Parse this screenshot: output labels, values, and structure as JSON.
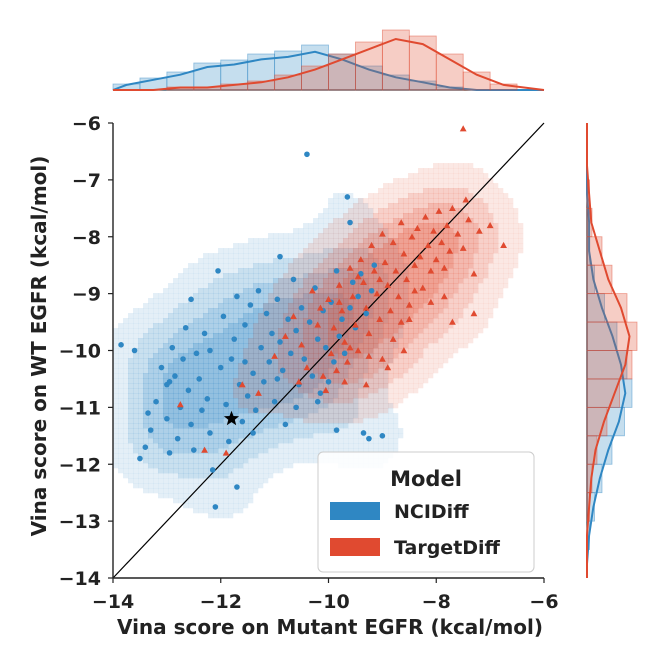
{
  "chart_data": {
    "type": "scatter",
    "title": "",
    "xlabel": "Vina score on Mutant EGFR (kcal/mol)",
    "ylabel": "Vina score on WT EGFR (kcal/mol)",
    "xlim": [
      -14,
      -6
    ],
    "ylim": [
      -14,
      -6
    ],
    "xticks": [
      -14,
      -12,
      -10,
      -8,
      -6
    ],
    "yticks": [
      -14,
      -13,
      -12,
      -11,
      -10,
      -9,
      -8,
      -7,
      -6
    ],
    "xtick_labels": [
      "−14",
      "−12",
      "−10",
      "−8",
      "−6"
    ],
    "ytick_labels": [
      "−14",
      "−13",
      "−12",
      "−11",
      "−10",
      "−9",
      "−8",
      "−7",
      "−6"
    ],
    "grid": false,
    "diagonal_line": {
      "from": [
        -14,
        -14
      ],
      "to": [
        -6,
        -6
      ]
    },
    "legend": {
      "title": "Model",
      "placement": "bottom-right",
      "entries": [
        "NCIDiff",
        "TargetDiff"
      ]
    },
    "colors": {
      "NCIDiff": "#2f87c3",
      "TargetDiff": "#e04a30"
    },
    "reference_marker": {
      "label": "reference",
      "x": -11.8,
      "y": -11.2,
      "marker": "star"
    },
    "series": [
      {
        "name": "NCIDiff",
        "marker": "circle",
        "points": [
          [
            -13.85,
            -9.9
          ],
          [
            -13.6,
            -10.0
          ],
          [
            -13.5,
            -11.9
          ],
          [
            -13.4,
            -11.7
          ],
          [
            -13.35,
            -11.1
          ],
          [
            -13.3,
            -11.4
          ],
          [
            -13.2,
            -10.9
          ],
          [
            -13.1,
            -10.3
          ],
          [
            -13.0,
            -11.2
          ],
          [
            -13.0,
            -10.6
          ],
          [
            -12.95,
            -11.8
          ],
          [
            -12.9,
            -9.95
          ],
          [
            -12.85,
            -10.45
          ],
          [
            -12.8,
            -11.55
          ],
          [
            -12.75,
            -11.0
          ],
          [
            -12.7,
            -10.15
          ],
          [
            -12.65,
            -9.6
          ],
          [
            -12.6,
            -10.7
          ],
          [
            -12.55,
            -11.3
          ],
          [
            -12.5,
            -11.75
          ],
          [
            -12.45,
            -10.05
          ],
          [
            -12.4,
            -10.5
          ],
          [
            -12.35,
            -11.05
          ],
          [
            -12.3,
            -9.7
          ],
          [
            -12.25,
            -10.85
          ],
          [
            -12.2,
            -11.45
          ],
          [
            -12.15,
            -12.1
          ],
          [
            -12.1,
            -12.75
          ],
          [
            -12.05,
            -8.6
          ],
          [
            -12.0,
            -10.3
          ],
          [
            -11.95,
            -9.4
          ],
          [
            -11.9,
            -10.95
          ],
          [
            -11.85,
            -11.6
          ],
          [
            -11.8,
            -10.15
          ],
          [
            -11.75,
            -9.8
          ],
          [
            -11.7,
            -9.05
          ],
          [
            -11.65,
            -10.6
          ],
          [
            -11.6,
            -11.25
          ],
          [
            -11.55,
            -9.55
          ],
          [
            -11.5,
            -10.8
          ],
          [
            -11.45,
            -9.2
          ],
          [
            -11.4,
            -10.4
          ],
          [
            -11.35,
            -11.05
          ],
          [
            -11.3,
            -8.95
          ],
          [
            -11.25,
            -9.95
          ],
          [
            -11.2,
            -10.55
          ],
          [
            -11.15,
            -9.35
          ],
          [
            -11.1,
            -10.2
          ],
          [
            -11.05,
            -9.7
          ],
          [
            -11.0,
            -10.9
          ],
          [
            -10.95,
            -9.1
          ],
          [
            -10.9,
            -9.85
          ],
          [
            -10.85,
            -10.35
          ],
          [
            -10.8,
            -11.3
          ],
          [
            -10.75,
            -9.45
          ],
          [
            -10.7,
            -10.05
          ],
          [
            -10.65,
            -8.75
          ],
          [
            -10.6,
            -9.65
          ],
          [
            -10.55,
            -10.6
          ],
          [
            -10.5,
            -9.25
          ],
          [
            -10.45,
            -10.15
          ],
          [
            -10.4,
            -6.55
          ],
          [
            -10.35,
            -9.5
          ],
          [
            -10.3,
            -10.45
          ],
          [
            -10.25,
            -8.9
          ],
          [
            -10.2,
            -9.8
          ],
          [
            -10.15,
            -10.75
          ],
          [
            -10.1,
            -9.3
          ],
          [
            -10.05,
            -9.95
          ],
          [
            -10.0,
            -10.55
          ],
          [
            -9.95,
            -9.15
          ],
          [
            -9.9,
            -10.2
          ],
          [
            -9.85,
            -8.6
          ],
          [
            -9.8,
            -9.75
          ],
          [
            -9.75,
            -9.45
          ],
          [
            -9.7,
            -10.05
          ],
          [
            -9.65,
            -7.3
          ],
          [
            -9.6,
            -9.25
          ],
          [
            -9.55,
            -8.8
          ],
          [
            -9.5,
            -9.6
          ],
          [
            -9.45,
            -9.05
          ],
          [
            -9.4,
            -8.65
          ],
          [
            -9.35,
            -11.45
          ],
          [
            -9.3,
            -9.35
          ],
          [
            -9.25,
            -11.55
          ],
          [
            -9.2,
            -8.95
          ],
          [
            -9.15,
            -8.5
          ],
          [
            -9.0,
            -11.5
          ],
          [
            -11.7,
            -12.4
          ],
          [
            -10.9,
            -8.35
          ],
          [
            -12.95,
            -10.55
          ],
          [
            -12.55,
            -9.1
          ],
          [
            -11.4,
            -11.45
          ],
          [
            -10.6,
            -11.0
          ],
          [
            -9.85,
            -11.4
          ],
          [
            -9.6,
            -7.75
          ],
          [
            -12.2,
            -10.0
          ],
          [
            -11.55,
            -10.2
          ],
          [
            -10.95,
            -10.5
          ],
          [
            -10.2,
            -10.9
          ]
        ]
      },
      {
        "name": "TargetDiff",
        "marker": "triangle",
        "points": [
          [
            -12.75,
            -10.95
          ],
          [
            -12.3,
            -11.75
          ],
          [
            -11.9,
            -11.8
          ],
          [
            -11.6,
            -10.6
          ],
          [
            -11.3,
            -10.75
          ],
          [
            -11.0,
            -10.1
          ],
          [
            -10.8,
            -9.75
          ],
          [
            -10.65,
            -9.4
          ],
          [
            -10.5,
            -9.9
          ],
          [
            -10.4,
            -10.3
          ],
          [
            -10.3,
            -8.95
          ],
          [
            -10.2,
            -9.55
          ],
          [
            -10.1,
            -10.45
          ],
          [
            -10.0,
            -9.1
          ],
          [
            -9.95,
            -10.05
          ],
          [
            -9.9,
            -9.6
          ],
          [
            -9.85,
            -10.35
          ],
          [
            -9.8,
            -8.85
          ],
          [
            -9.75,
            -9.3
          ],
          [
            -9.7,
            -9.85
          ],
          [
            -9.65,
            -10.2
          ],
          [
            -9.6,
            -8.55
          ],
          [
            -9.55,
            -9.05
          ],
          [
            -9.5,
            -9.55
          ],
          [
            -9.45,
            -10.0
          ],
          [
            -9.4,
            -8.4
          ],
          [
            -9.35,
            -8.8
          ],
          [
            -9.3,
            -9.25
          ],
          [
            -9.25,
            -9.7
          ],
          [
            -9.2,
            -8.15
          ],
          [
            -9.15,
            -8.6
          ],
          [
            -9.1,
            -9.0
          ],
          [
            -9.05,
            -9.45
          ],
          [
            -9.0,
            -7.95
          ],
          [
            -8.95,
            -8.45
          ],
          [
            -8.9,
            -8.85
          ],
          [
            -8.85,
            -9.3
          ],
          [
            -8.8,
            -8.1
          ],
          [
            -8.75,
            -8.6
          ],
          [
            -8.7,
            -9.05
          ],
          [
            -8.65,
            -7.75
          ],
          [
            -8.6,
            -8.3
          ],
          [
            -8.55,
            -8.75
          ],
          [
            -8.5,
            -9.2
          ],
          [
            -8.45,
            -8.0
          ],
          [
            -8.4,
            -8.5
          ],
          [
            -8.35,
            -7.85
          ],
          [
            -8.3,
            -8.35
          ],
          [
            -8.25,
            -8.9
          ],
          [
            -8.2,
            -7.65
          ],
          [
            -8.15,
            -8.15
          ],
          [
            -8.1,
            -8.6
          ],
          [
            -8.05,
            -7.9
          ],
          [
            -8.0,
            -8.4
          ],
          [
            -7.95,
            -7.55
          ],
          [
            -7.9,
            -8.1
          ],
          [
            -7.85,
            -8.55
          ],
          [
            -7.8,
            -7.8
          ],
          [
            -7.75,
            -8.25
          ],
          [
            -7.7,
            -7.5
          ],
          [
            -7.6,
            -7.95
          ],
          [
            -7.5,
            -8.2
          ],
          [
            -7.45,
            -7.35
          ],
          [
            -7.4,
            -7.7
          ],
          [
            -7.3,
            -8.65
          ],
          [
            -7.2,
            -7.9
          ],
          [
            -6.75,
            -8.15
          ],
          [
            -7.0,
            -7.8
          ],
          [
            -7.5,
            -6.1
          ],
          [
            -7.3,
            -9.35
          ],
          [
            -7.7,
            -9.5
          ],
          [
            -8.1,
            -9.15
          ],
          [
            -8.5,
            -9.45
          ],
          [
            -8.9,
            -10.3
          ],
          [
            -9.3,
            -10.6
          ],
          [
            -9.7,
            -10.55
          ],
          [
            -10.15,
            -9.25
          ],
          [
            -9.8,
            -9.15
          ],
          [
            -9.45,
            -8.7
          ],
          [
            -9.05,
            -8.75
          ],
          [
            -8.65,
            -9.5
          ],
          [
            -8.4,
            -8.95
          ],
          [
            -9.25,
            -10.1
          ],
          [
            -9.6,
            -9.95
          ],
          [
            -8.8,
            -9.8
          ],
          [
            -10.55,
            -10.55
          ],
          [
            -10.05,
            -10.7
          ],
          [
            -9.0,
            -10.15
          ],
          [
            -8.6,
            -10.0
          ],
          [
            -7.85,
            -9.05
          ]
        ]
      }
    ],
    "marginal_x": {
      "bins": [
        -14,
        -13.5,
        -13,
        -12.5,
        -12,
        -11.5,
        -11,
        -10.5,
        -10,
        -9.5,
        -9,
        -8.5,
        -8,
        -7.5,
        -7,
        -6.5
      ],
      "NCIDiff": [
        2,
        4,
        6,
        9,
        10,
        12,
        13,
        15,
        12,
        8,
        5,
        3,
        1,
        0,
        0
      ],
      "TargetDiff": [
        0,
        0,
        1,
        1,
        2,
        3,
        5,
        8,
        12,
        16,
        20,
        18,
        12,
        6,
        2
      ]
    },
    "marginal_y": {
      "bins": [
        -14,
        -13.5,
        -13,
        -12.5,
        -12,
        -11.5,
        -11,
        -10.5,
        -10,
        -9.5,
        -9,
        -8.5,
        -8,
        -7.5,
        -7,
        -6.5
      ],
      "NCIDiff": [
        0,
        1,
        3,
        6,
        10,
        15,
        18,
        16,
        12,
        7,
        3,
        1,
        1,
        0,
        0
      ],
      "TargetDiff": [
        0,
        0,
        1,
        2,
        4,
        8,
        13,
        18,
        20,
        16,
        10,
        6,
        2,
        1,
        0
      ]
    }
  }
}
